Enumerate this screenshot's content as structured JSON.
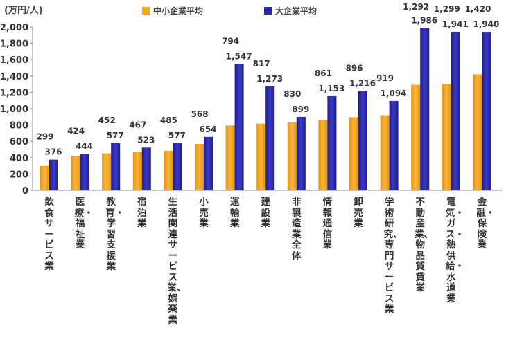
{
  "unit_label": "(万円/人)",
  "legend": [
    {
      "label": "中小企業平均",
      "color": "#f5a623"
    },
    {
      "label": "大企業平均",
      "color": "#2b2aa8"
    }
  ],
  "chart_data": {
    "type": "bar",
    "ylabel": "(万円/人)",
    "ylim": [
      0,
      2000
    ],
    "yticks": [
      "0",
      "200",
      "400",
      "600",
      "800",
      "1,000",
      "1,200",
      "1,400",
      "1,600",
      "1,800",
      "2,000"
    ],
    "grid": false,
    "legend_position": "top",
    "categories": [
      "飲食サービス業",
      "医療・福祉業",
      "教育・学習支援業",
      "宿泊業",
      "生活関連サービス業、娯楽業",
      "小売業",
      "運輸業",
      "建設業",
      "非製造業全体",
      "情報通信業",
      "卸売業",
      "学術研究、専門サービス業",
      "不動産業、物品賃貸業",
      "電気・ガス・熱供給・水道業",
      "金融・保険業"
    ],
    "series": [
      {
        "name": "中小企業平均",
        "color": "#f5a623",
        "values": [
          299,
          424,
          452,
          467,
          485,
          568,
          794,
          817,
          830,
          861,
          896,
          919,
          1292,
          1299,
          1420
        ],
        "labels": [
          "299",
          "424",
          "452",
          "467",
          "485",
          "568",
          "794",
          "817",
          "830",
          "861",
          "896",
          "919",
          "1,292",
          "1,299",
          "1,420"
        ]
      },
      {
        "name": "大企業平均",
        "color": "#2b2aa8",
        "values": [
          376,
          444,
          577,
          523,
          577,
          654,
          1547,
          1273,
          899,
          1153,
          1216,
          1094,
          1986,
          1941,
          1940
        ],
        "labels": [
          "376",
          "444",
          "577",
          "523",
          "577",
          "654",
          "1,547",
          "1,273",
          "899",
          "1,153",
          "1,216",
          "1,094",
          "1,986",
          "1,941",
          "1,940"
        ]
      }
    ]
  }
}
